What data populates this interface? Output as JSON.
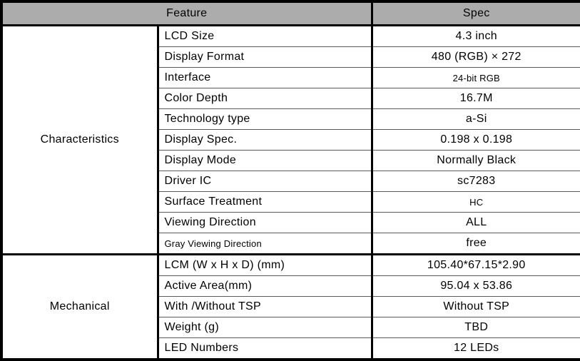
{
  "table": {
    "header": {
      "feature": "Feature",
      "spec": "Spec"
    },
    "sections": [
      {
        "label": "Characteristics",
        "rows": [
          {
            "feature": "LCD Size",
            "spec": "4.3 inch"
          },
          {
            "feature": "Display Format",
            "spec": "480 (RGB) × 272"
          },
          {
            "feature": "Interface",
            "spec": "24-bit RGB"
          },
          {
            "feature": "Color Depth",
            "spec": "16.7M"
          },
          {
            "feature": "Technology type",
            "spec": "a-Si"
          },
          {
            "feature": "Display Spec.",
            "spec": "0.198 x 0.198"
          },
          {
            "feature": "Display Mode",
            "spec": "Normally Black"
          },
          {
            "feature": "Driver IC",
            "spec": "sc7283"
          },
          {
            "feature": "Surface Treatment",
            "spec": "HC"
          },
          {
            "feature": "Viewing Direction",
            "spec": "ALL"
          },
          {
            "feature": "Gray Viewing Direction",
            "spec": "free"
          }
        ]
      },
      {
        "label": "Mechanical",
        "rows": [
          {
            "feature": "LCM (W x H x D) (mm)",
            "spec": "105.40*67.15*2.90"
          },
          {
            "feature": "Active Area(mm)",
            "spec": "95.04 x 53.86"
          },
          {
            "feature": "With /Without TSP",
            "spec": "Without TSP"
          },
          {
            "feature": "Weight (g)",
            "spec": "TBD"
          },
          {
            "feature": "LED Numbers",
            "spec": "12 LEDs"
          }
        ]
      }
    ]
  },
  "colors": {
    "header_bg": "#acacac",
    "border_strong": "#000000",
    "row_divider": "#5a5a5a",
    "text": "#000000",
    "background": "#ffffff"
  }
}
